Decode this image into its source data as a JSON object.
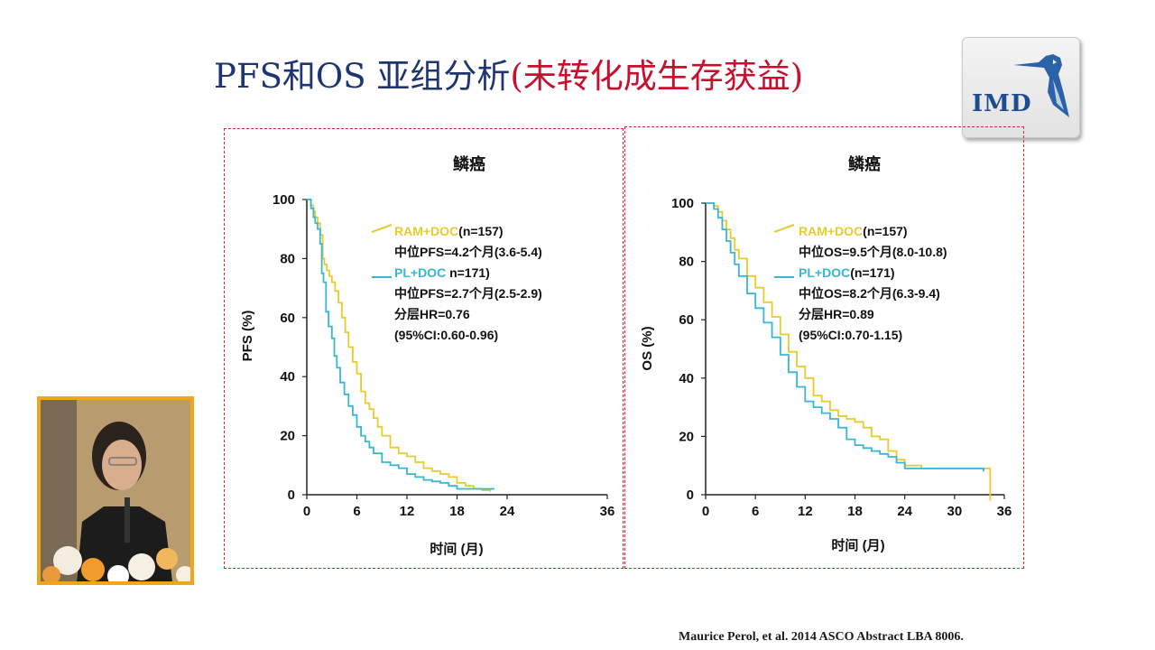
{
  "slide": {
    "title_main": "PFS和OS 亚组分析",
    "title_paren": "(未转化成生存获益)",
    "logo_text": "IMD",
    "citation": "Maurice Perol, et al. 2014 ASCO Abstract LBA 8006."
  },
  "colors": {
    "ram_doc": "#e6cc2e",
    "pl_doc": "#37b7d4",
    "title_blue": "#1f3572",
    "accent_red": "#c8102e",
    "frame": "#d22a36"
  },
  "chart_data": [
    {
      "type": "line",
      "title": "鳞癌",
      "xlabel": "时间 (月)",
      "ylabel": "PFS (%)",
      "xlim": [
        0,
        36
      ],
      "ylim": [
        0,
        100
      ],
      "x_ticks": [
        0,
        6,
        12,
        18,
        24,
        36
      ],
      "y_ticks": [
        0,
        20,
        40,
        60,
        80,
        100
      ],
      "legend": {
        "ram_name": "RAM+DOC",
        "ram_n": "(n=157)",
        "ram_median": "中位PFS=4.2个月(3.6-5.4)",
        "pl_name": "PL+DOC",
        "pl_n": " n=171)",
        "pl_median": "中位PFS=2.7个月(2.5-2.9)",
        "hr": "分层HR=0.76",
        "ci": "(95%CI:0.60-0.96)"
      },
      "series": [
        {
          "name": "RAM+DOC",
          "color": "#e6cc2e",
          "x": [
            0,
            0.5,
            0.8,
            1.0,
            1.3,
            1.6,
            1.9,
            2.1,
            2.4,
            2.7,
            3.0,
            3.4,
            3.8,
            4.2,
            4.6,
            5.0,
            5.5,
            6.0,
            6.5,
            7.0,
            7.5,
            8.0,
            8.5,
            9.0,
            10.0,
            11.0,
            12.0,
            13.0,
            14.0,
            15.0,
            16.0,
            17.0,
            18.0,
            19.0,
            20.0,
            21.0,
            22.0
          ],
          "y": [
            100,
            98,
            96,
            94,
            92,
            88,
            80,
            78,
            76,
            74,
            72,
            69,
            65,
            60,
            55,
            50,
            45,
            41,
            35,
            31,
            29,
            26,
            23,
            20,
            16,
            14,
            13,
            11,
            9,
            8,
            7,
            6,
            4,
            3,
            2,
            1.5,
            1
          ]
        },
        {
          "name": "PL+DOC",
          "color": "#37b7d4",
          "x": [
            0,
            0.5,
            0.8,
            1.0,
            1.3,
            1.6,
            1.8,
            2.0,
            2.3,
            2.6,
            3.0,
            3.3,
            3.6,
            4.0,
            4.5,
            5.0,
            5.5,
            6.0,
            6.5,
            7.0,
            7.5,
            8.0,
            9.0,
            10.0,
            11.0,
            12.0,
            13.0,
            14.0,
            15.0,
            16.0,
            17.0,
            18.0,
            19.0,
            20.0,
            21.0,
            22.5
          ],
          "y": [
            100,
            97,
            94,
            92,
            90,
            85,
            75,
            72,
            62,
            57,
            53,
            47,
            43,
            38,
            34,
            30,
            27,
            23,
            20,
            18,
            16,
            14,
            11,
            10,
            9,
            7,
            6,
            5,
            4.5,
            4,
            3,
            2,
            2,
            2,
            2,
            2
          ]
        }
      ]
    },
    {
      "type": "line",
      "title": "鳞癌",
      "xlabel": "时间 (月)",
      "ylabel": "OS (%)",
      "xlim": [
        0,
        36
      ],
      "ylim": [
        0,
        100
      ],
      "x_ticks": [
        0,
        6,
        12,
        18,
        24,
        30,
        36
      ],
      "y_ticks": [
        0,
        20,
        40,
        60,
        80,
        100
      ],
      "legend": {
        "ram_name": "RAM+DOC",
        "ram_n": "(n=157)",
        "ram_median": "中位OS=9.5个月(8.0-10.8)",
        "pl_name": "PL+DOC",
        "pl_n": "(n=171)",
        "pl_median": "中位OS=8.2个月(6.3-9.4)",
        "hr": "分层HR=0.89",
        "ci": "(95%CI:0.70-1.15)"
      },
      "series": [
        {
          "name": "RAM+DOC",
          "color": "#e6cc2e",
          "x": [
            0,
            1.0,
            1.5,
            2.0,
            2.5,
            3.0,
            3.5,
            4.0,
            5.0,
            6.0,
            7.0,
            8.0,
            9.0,
            10.0,
            11.0,
            12.0,
            13.0,
            14.0,
            15.0,
            16.0,
            17.0,
            18.0,
            19.0,
            20.0,
            21.0,
            22.0,
            23.0,
            24.0,
            26.0,
            30.0,
            34.0,
            34.3
          ],
          "y": [
            100,
            99,
            97,
            94,
            91,
            88,
            84,
            81,
            75,
            71,
            66,
            61,
            55,
            49,
            44,
            40,
            34,
            32,
            29,
            27,
            26,
            25,
            23,
            20,
            19,
            15,
            12,
            10,
            9,
            9,
            9,
            -2
          ]
        },
        {
          "name": "PL+DOC",
          "color": "#37b7d4",
          "x": [
            0,
            1.0,
            1.5,
            2.0,
            2.5,
            3.0,
            3.5,
            4.0,
            5.0,
            6.0,
            7.0,
            8.0,
            9.0,
            10.0,
            11.0,
            12.0,
            13.0,
            14.0,
            15.0,
            16.0,
            17.0,
            18.0,
            19.0,
            20.0,
            21.0,
            22.0,
            23.0,
            24.0,
            26.0,
            30.0,
            33.5
          ],
          "y": [
            100,
            98,
            95,
            91,
            87,
            83,
            79,
            75,
            69,
            64,
            59,
            54,
            48,
            42,
            37,
            32,
            30,
            28,
            26,
            23,
            19,
            17,
            16,
            15,
            14,
            13,
            11,
            9,
            9,
            9,
            8
          ]
        }
      ]
    }
  ]
}
